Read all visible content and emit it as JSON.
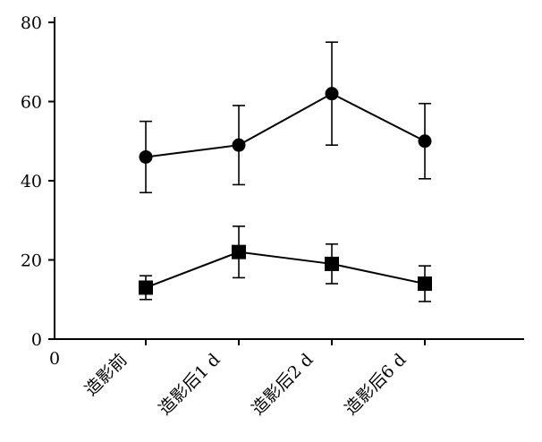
{
  "chart_data": {
    "type": "line",
    "title": "",
    "xlabel": "",
    "ylabel": "",
    "x_origin_label": "0",
    "categories": [
      "造影前",
      "造影后1 d",
      "造影后2 d",
      "造影后6 d"
    ],
    "ylim": [
      0,
      80
    ],
    "yticks": [
      0,
      20,
      40,
      60,
      80
    ],
    "grid": false,
    "legend": "none",
    "series": [
      {
        "marker": "circle",
        "color": "#000000",
        "values": [
          46,
          49,
          62,
          50
        ],
        "error": [
          9,
          10,
          13,
          9.5
        ]
      },
      {
        "marker": "square",
        "color": "#000000",
        "values": [
          13,
          22,
          19,
          14
        ],
        "error": [
          3,
          6.5,
          5,
          4.5
        ]
      }
    ]
  }
}
